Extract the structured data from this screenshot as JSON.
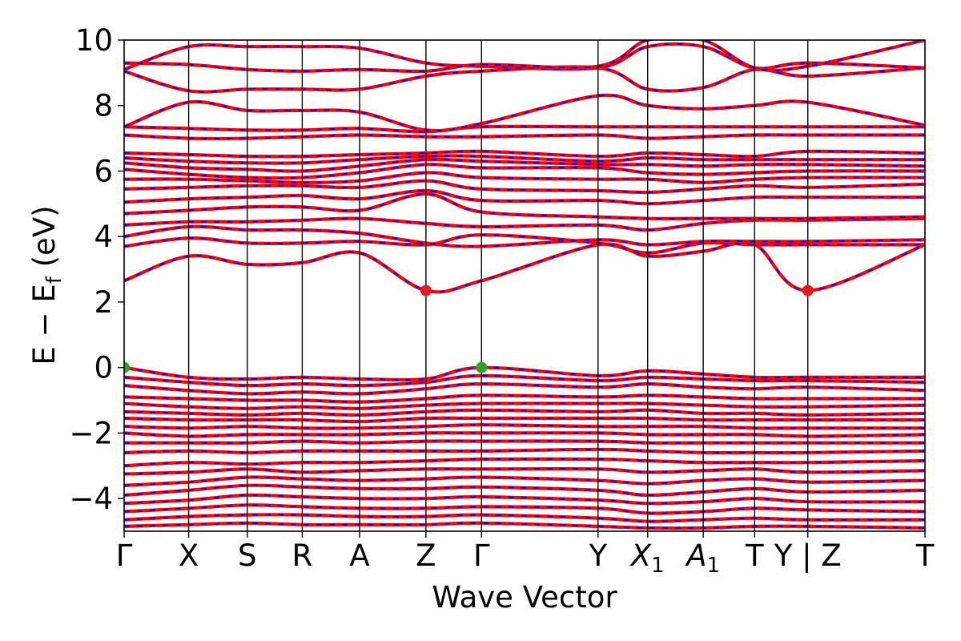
{
  "chart_data": {
    "type": "line",
    "title": "",
    "xlabel": "Wave Vector",
    "ylabel": "E − E",
    "ylabel_sub": "f",
    "ylabel_unit": " (eV)",
    "ylim": [
      -5,
      10
    ],
    "yticks": [
      {
        "value": -4,
        "label": "−4"
      },
      {
        "value": -2,
        "label": "−2"
      },
      {
        "value": 0,
        "label": "0"
      },
      {
        "value": 2,
        "label": "2"
      },
      {
        "value": 4,
        "label": "4"
      },
      {
        "value": 6,
        "label": "6"
      },
      {
        "value": 8,
        "label": "8"
      },
      {
        "value": 10,
        "label": "10"
      }
    ],
    "xlim": [
      0,
      13.4
    ],
    "kpoints": [
      {
        "x": 0.0,
        "label": "Γ",
        "sub": ""
      },
      {
        "x": 1.08,
        "label": "X",
        "sub": ""
      },
      {
        "x": 2.06,
        "label": "S",
        "sub": ""
      },
      {
        "x": 2.98,
        "label": "R",
        "sub": ""
      },
      {
        "x": 3.94,
        "label": "A",
        "sub": ""
      },
      {
        "x": 5.05,
        "label": "Z",
        "sub": ""
      },
      {
        "x": 5.98,
        "label": "Γ",
        "sub": ""
      },
      {
        "x": 7.93,
        "label": "Y",
        "sub": ""
      },
      {
        "x": 8.76,
        "label": "X",
        "sub": "1"
      },
      {
        "x": 9.69,
        "label": "A",
        "sub": "1"
      },
      {
        "x": 10.55,
        "label": "T",
        "sub": ""
      },
      {
        "x": 11.44,
        "label": "Y | Z",
        "sub": ""
      },
      {
        "x": 13.4,
        "label": "T",
        "sub": ""
      }
    ],
    "grid": false,
    "line_colors": {
      "primary": "#ff0000",
      "overlay": "#0000ff"
    },
    "cbm_points": [
      {
        "x": 5.05,
        "y": 2.35
      },
      {
        "x": 11.44,
        "y": 2.35
      }
    ],
    "vbm_points": [
      {
        "x": 0.0,
        "y": 0.0
      },
      {
        "x": 5.98,
        "y": 0.0
      }
    ],
    "marker_colors": {
      "cbm": "#e41a1c",
      "vbm": "#2ca02c"
    },
    "series": [
      {
        "y": [
          2.65,
          3.4,
          3.15,
          3.2,
          3.5,
          2.35,
          2.65,
          3.75,
          3.4,
          3.55,
          3.75,
          2.35,
          3.75
        ]
      },
      {
        "y": [
          3.7,
          3.95,
          3.8,
          3.8,
          3.85,
          3.75,
          4.05,
          3.8,
          3.5,
          3.8,
          3.75,
          3.75,
          3.75
        ]
      },
      {
        "y": [
          4.0,
          4.3,
          4.2,
          4.2,
          4.1,
          3.8,
          3.7,
          3.9,
          3.75,
          3.85,
          3.85,
          3.85,
          3.9
        ]
      },
      {
        "y": [
          4.35,
          4.45,
          4.45,
          4.5,
          4.55,
          4.4,
          4.3,
          4.35,
          4.2,
          4.4,
          4.5,
          4.5,
          4.55
        ]
      },
      {
        "y": [
          4.7,
          4.8,
          4.9,
          4.9,
          4.8,
          5.3,
          4.75,
          4.6,
          4.55,
          4.55,
          4.55,
          4.55,
          4.6
        ]
      },
      {
        "y": [
          5.05,
          5.15,
          5.2,
          5.25,
          5.15,
          5.4,
          5.1,
          5.1,
          5.0,
          5.1,
          5.2,
          5.2,
          5.2
        ]
      },
      {
        "y": [
          5.45,
          5.5,
          5.55,
          5.55,
          5.5,
          5.7,
          5.45,
          5.4,
          5.35,
          5.45,
          5.55,
          5.5,
          5.6
        ]
      },
      {
        "y": [
          5.75,
          5.75,
          5.7,
          5.65,
          5.7,
          5.95,
          5.8,
          5.75,
          5.75,
          5.65,
          5.75,
          5.8,
          5.8
        ]
      },
      {
        "y": [
          6.05,
          5.9,
          5.8,
          5.8,
          5.95,
          6.2,
          6.1,
          6.1,
          5.95,
          5.9,
          5.95,
          6.0,
          6.0
        ]
      },
      {
        "y": [
          6.25,
          6.1,
          6.05,
          6.0,
          6.15,
          6.35,
          6.3,
          6.2,
          6.2,
          6.15,
          6.2,
          6.2,
          6.15
        ]
      },
      {
        "y": [
          6.4,
          6.3,
          6.25,
          6.25,
          6.35,
          6.45,
          6.45,
          6.3,
          6.4,
          6.35,
          6.35,
          6.35,
          6.35
        ]
      },
      {
        "y": [
          6.55,
          6.5,
          6.45,
          6.45,
          6.5,
          6.55,
          6.6,
          6.45,
          6.55,
          6.5,
          6.45,
          6.6,
          6.55
        ]
      },
      {
        "y": [
          7.1,
          7.0,
          7.0,
          7.05,
          7.1,
          7.05,
          7.05,
          7.1,
          7.0,
          7.05,
          7.1,
          7.1,
          7.1
        ]
      },
      {
        "y": [
          7.35,
          7.3,
          7.25,
          7.25,
          7.3,
          7.2,
          7.35,
          7.35,
          7.35,
          7.35,
          7.35,
          7.35,
          7.35
        ]
      },
      {
        "y": [
          7.35,
          8.1,
          7.85,
          7.85,
          7.8,
          7.25,
          7.45,
          8.3,
          8.0,
          7.9,
          8.0,
          8.1,
          7.4
        ]
      },
      {
        "y": [
          9.05,
          8.45,
          8.5,
          8.5,
          8.5,
          8.9,
          9.05,
          9.15,
          8.5,
          8.55,
          9.1,
          8.9,
          9.15
        ]
      },
      {
        "y": [
          9.1,
          9.8,
          9.8,
          9.8,
          9.75,
          9.3,
          9.2,
          9.15,
          9.8,
          9.8,
          9.15,
          9.3,
          9.15
        ]
      },
      {
        "y": [
          9.3,
          9.25,
          9.1,
          9.05,
          9.1,
          9.05,
          9.25,
          9.2,
          10.0,
          10.0,
          9.15,
          9.2,
          10.0
        ]
      },
      {
        "y": [
          0.0,
          -0.3,
          -0.35,
          -0.3,
          -0.35,
          -0.35,
          0.0,
          -0.25,
          -0.1,
          -0.2,
          -0.3,
          -0.3,
          -0.3
        ]
      },
      {
        "y": [
          -0.3,
          -0.45,
          -0.55,
          -0.5,
          -0.55,
          -0.45,
          -0.25,
          -0.4,
          -0.3,
          -0.35,
          -0.4,
          -0.4,
          -0.45
        ]
      },
      {
        "y": [
          -0.55,
          -0.7,
          -0.8,
          -0.75,
          -0.8,
          -0.65,
          -0.5,
          -0.6,
          -0.5,
          -0.6,
          -0.65,
          -0.6,
          -0.7
        ]
      },
      {
        "y": [
          -0.9,
          -0.95,
          -1.0,
          -1.0,
          -1.05,
          -0.95,
          -0.85,
          -0.9,
          -0.85,
          -0.9,
          -0.95,
          -0.95,
          -0.95
        ]
      },
      {
        "y": [
          -1.1,
          -1.2,
          -1.25,
          -1.2,
          -1.25,
          -1.15,
          -1.1,
          -1.1,
          -1.1,
          -1.15,
          -1.2,
          -1.2,
          -1.15
        ]
      },
      {
        "y": [
          -1.35,
          -1.4,
          -1.45,
          -1.4,
          -1.45,
          -1.35,
          -1.3,
          -1.35,
          -1.3,
          -1.4,
          -1.4,
          -1.45,
          -1.4
        ]
      },
      {
        "y": [
          -1.55,
          -1.6,
          -1.6,
          -1.6,
          -1.65,
          -1.55,
          -1.55,
          -1.55,
          -1.55,
          -1.6,
          -1.6,
          -1.6,
          -1.6
        ]
      },
      {
        "y": [
          -1.8,
          -1.85,
          -1.8,
          -1.85,
          -1.85,
          -1.8,
          -1.75,
          -1.8,
          -1.8,
          -1.8,
          -1.85,
          -1.85,
          -1.85
        ]
      },
      {
        "y": [
          -2.0,
          -2.1,
          -2.05,
          -2.05,
          -2.05,
          -2.0,
          -2.0,
          -2.0,
          -2.05,
          -2.05,
          -2.05,
          -2.1,
          -2.05
        ]
      },
      {
        "y": [
          -2.3,
          -2.3,
          -2.3,
          -2.25,
          -2.3,
          -2.25,
          -2.25,
          -2.25,
          -2.3,
          -2.3,
          -2.3,
          -2.3,
          -2.3
        ]
      },
      {
        "y": [
          -2.6,
          -2.55,
          -2.6,
          -2.55,
          -2.55,
          -2.55,
          -2.55,
          -2.5,
          -2.55,
          -2.6,
          -2.6,
          -2.6,
          -2.55
        ]
      },
      {
        "y": [
          -3.0,
          -2.9,
          -2.95,
          -2.9,
          -2.9,
          -2.85,
          -2.8,
          -2.8,
          -2.85,
          -2.9,
          -2.9,
          -2.9,
          -2.85
        ]
      },
      {
        "y": [
          -3.25,
          -3.2,
          -3.1,
          -3.2,
          -3.15,
          -3.1,
          -3.1,
          -3.1,
          -3.2,
          -3.15,
          -3.1,
          -3.2,
          -3.15
        ]
      },
      {
        "y": [
          -3.6,
          -3.5,
          -3.35,
          -3.4,
          -3.45,
          -3.4,
          -3.35,
          -3.45,
          -3.55,
          -3.45,
          -3.4,
          -3.5,
          -3.45
        ]
      },
      {
        "y": [
          -3.9,
          -3.75,
          -3.6,
          -3.65,
          -3.7,
          -3.7,
          -3.65,
          -3.75,
          -3.9,
          -3.8,
          -3.7,
          -3.8,
          -3.75
        ]
      },
      {
        "y": [
          -4.15,
          -4.05,
          -3.9,
          -3.95,
          -4.0,
          -4.0,
          -3.95,
          -4.05,
          -4.15,
          -4.1,
          -4.0,
          -4.1,
          -4.1
        ]
      },
      {
        "y": [
          -4.4,
          -4.3,
          -4.2,
          -4.25,
          -4.3,
          -4.3,
          -4.25,
          -4.3,
          -4.45,
          -4.4,
          -4.3,
          -4.35,
          -4.4
        ]
      },
      {
        "y": [
          -4.65,
          -4.55,
          -4.5,
          -4.5,
          -4.55,
          -4.55,
          -4.5,
          -4.6,
          -4.7,
          -4.65,
          -4.6,
          -4.65,
          -4.65
        ]
      },
      {
        "y": [
          -4.85,
          -4.8,
          -4.75,
          -4.8,
          -4.8,
          -4.8,
          -4.75,
          -4.85,
          -4.9,
          -4.9,
          -4.85,
          -4.85,
          -4.9
        ]
      }
    ]
  }
}
